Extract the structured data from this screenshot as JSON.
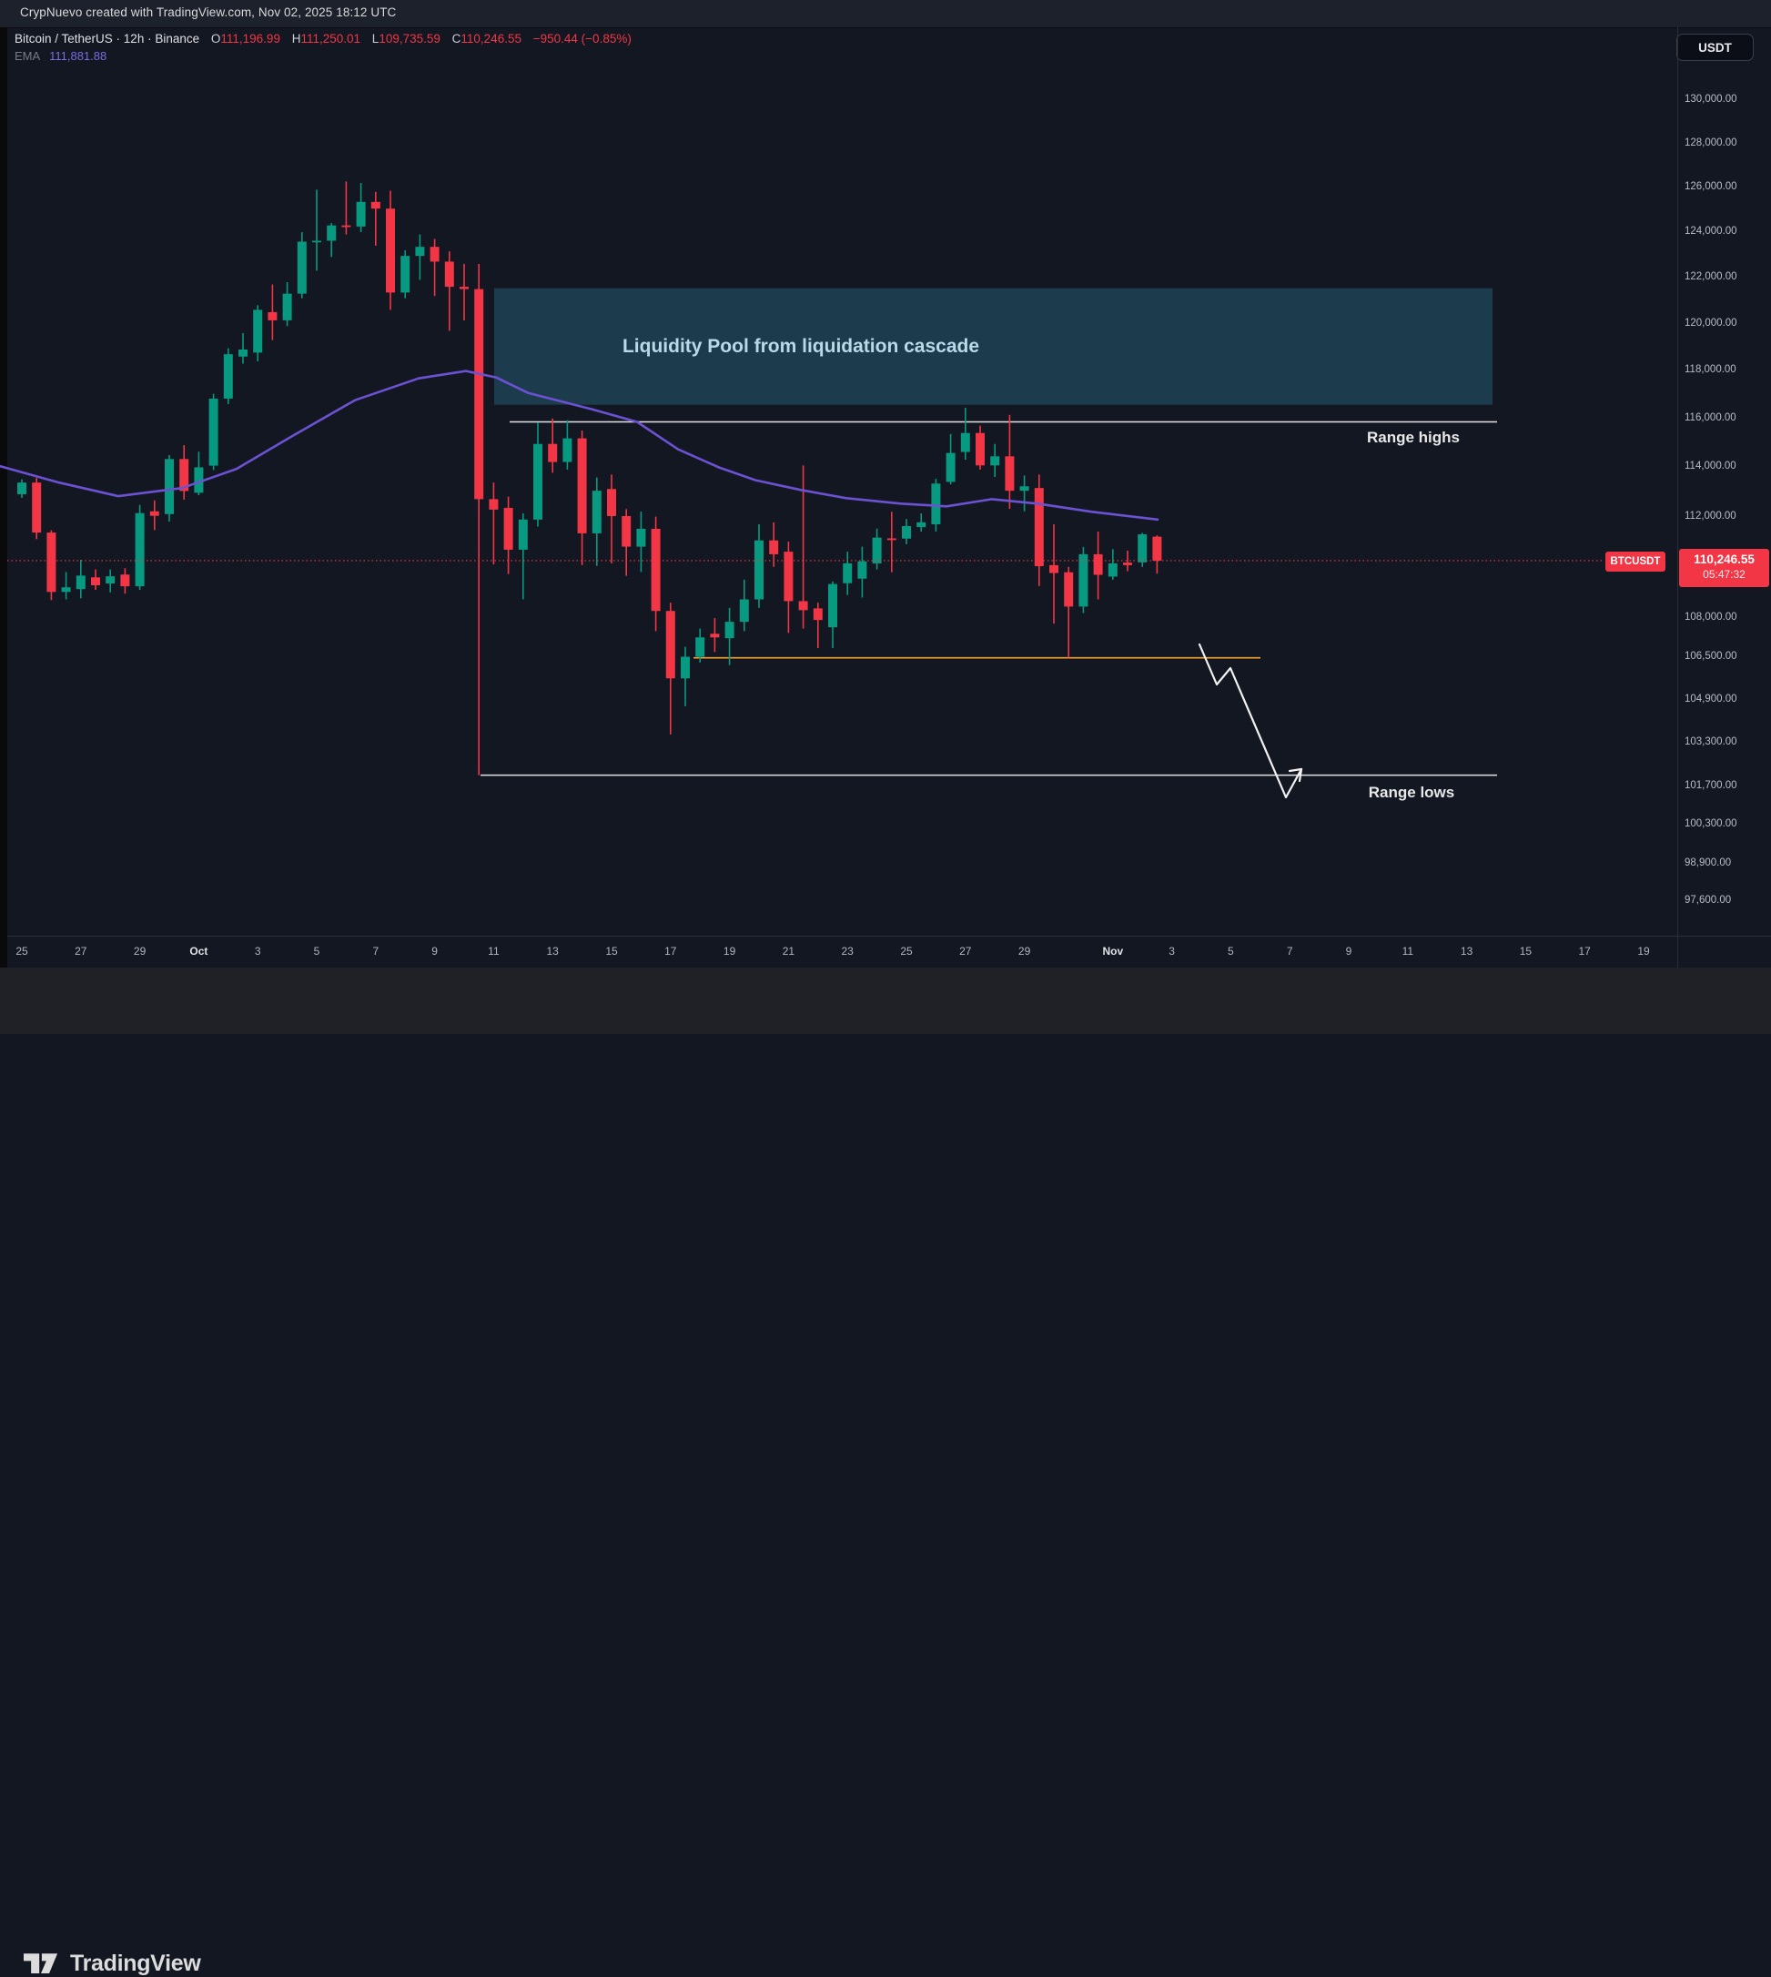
{
  "attribution": "CrypNuevo created with TradingView.com, Nov 02, 2025 18:12 UTC",
  "header": {
    "symbol_line": "Bitcoin / TetherUS · 12h · Binance",
    "o_label": "O",
    "o_value": "111,196.99",
    "h_label": "H",
    "h_value": "111,250.01",
    "l_label": "L",
    "l_value": "109,735.59",
    "c_label": "C",
    "c_value": "110,246.55",
    "change": "−950.44 (−0.85%)",
    "ema_label": "EMA",
    "ema_value": "111,881.88"
  },
  "currency_button": "USDT",
  "price_badge": {
    "symbol": "BTCUSDT",
    "price": "110,246.55",
    "countdown": "05:47:32"
  },
  "annotations": {
    "liquidity": "Liquidity Pool from liquidation cascade",
    "range_highs": "Range highs",
    "range_lows": "Range lows"
  },
  "logo": {
    "text": "TradingView"
  },
  "colors": {
    "background": "#131722",
    "bullish": "#089981",
    "bearish": "#f23645",
    "ema": "#6c52d2",
    "level_orange": "#f0a030",
    "range_line": "#e3e3e3",
    "liquidity_fill": "rgba(45,130,158,0.35)",
    "liquidity_text": "#b9d9e8"
  },
  "price_axis": {
    "ticks": [
      {
        "label": "130,000.00",
        "price": 130000
      },
      {
        "label": "128,000.00",
        "price": 128000
      },
      {
        "label": "126,000.00",
        "price": 126000
      },
      {
        "label": "124,000.00",
        "price": 124000
      },
      {
        "label": "122,000.00",
        "price": 122000
      },
      {
        "label": "120,000.00",
        "price": 120000
      },
      {
        "label": "118,000.00",
        "price": 118000
      },
      {
        "label": "116,000.00",
        "price": 116000
      },
      {
        "label": "114,000.00",
        "price": 114000
      },
      {
        "label": "112,000.00",
        "price": 112000
      },
      {
        "label": "108,000.00",
        "price": 108000
      },
      {
        "label": "106,500.00",
        "price": 106500
      },
      {
        "label": "104,900.00",
        "price": 104900
      },
      {
        "label": "103,300.00",
        "price": 103300
      },
      {
        "label": "101,700.00",
        "price": 101700
      },
      {
        "label": "100,300.00",
        "price": 100300
      },
      {
        "label": "98,900.00",
        "price": 98900
      },
      {
        "label": "97,600.00",
        "price": 97600
      }
    ]
  },
  "time_axis": {
    "ticks": [
      {
        "label": "25",
        "days": 0,
        "bold": false
      },
      {
        "label": "27",
        "days": 2,
        "bold": false
      },
      {
        "label": "29",
        "days": 4,
        "bold": false
      },
      {
        "label": "Oct",
        "days": 6,
        "bold": true
      },
      {
        "label": "3",
        "days": 8,
        "bold": false
      },
      {
        "label": "5",
        "days": 10,
        "bold": false
      },
      {
        "label": "7",
        "days": 12,
        "bold": false
      },
      {
        "label": "9",
        "days": 14,
        "bold": false
      },
      {
        "label": "11",
        "days": 16,
        "bold": false
      },
      {
        "label": "13",
        "days": 18,
        "bold": false
      },
      {
        "label": "15",
        "days": 20,
        "bold": false
      },
      {
        "label": "17",
        "days": 22,
        "bold": false
      },
      {
        "label": "19",
        "days": 24,
        "bold": false
      },
      {
        "label": "21",
        "days": 26,
        "bold": false
      },
      {
        "label": "23",
        "days": 28,
        "bold": false
      },
      {
        "label": "25",
        "days": 30,
        "bold": false
      },
      {
        "label": "27",
        "days": 32,
        "bold": false
      },
      {
        "label": "29",
        "days": 34,
        "bold": false
      },
      {
        "label": "Nov",
        "days": 37,
        "bold": true
      },
      {
        "label": "3",
        "days": 39,
        "bold": false
      },
      {
        "label": "5",
        "days": 41,
        "bold": false
      },
      {
        "label": "7",
        "days": 43,
        "bold": false
      },
      {
        "label": "9",
        "days": 45,
        "bold": false
      },
      {
        "label": "11",
        "days": 47,
        "bold": false
      },
      {
        "label": "13",
        "days": 49,
        "bold": false
      },
      {
        "label": "15",
        "days": 51,
        "bold": false
      },
      {
        "label": "17",
        "days": 53,
        "bold": false
      },
      {
        "label": "19",
        "days": 55,
        "bold": false
      }
    ]
  },
  "chart_data": {
    "type": "candlestick",
    "title": "Bitcoin / TetherUS · 12h · Binance",
    "timeframe": "12h",
    "last_price": 110246.55,
    "ylim": [
      97600,
      130000
    ],
    "scale": {
      "log": true,
      "p_top": 130000,
      "y_top": 110,
      "p_bottom": 97600,
      "y_bottom": 990
    },
    "levels": {
      "range_highs": 115860,
      "range_lows": 102100,
      "liquidity_support": 106480
    },
    "liquidity_zone": {
      "top": 121540,
      "bottom": 116570
    },
    "candles": [
      [
        112900,
        113500,
        112750,
        113370
      ],
      [
        113370,
        113560,
        111100,
        111360
      ],
      [
        111360,
        111450,
        108700,
        109020
      ],
      [
        109020,
        109800,
        108730,
        109200
      ],
      [
        109130,
        110280,
        108770,
        109660
      ],
      [
        109590,
        109900,
        109100,
        109280
      ],
      [
        109350,
        109900,
        109000,
        109630
      ],
      [
        109700,
        109950,
        108950,
        109240
      ],
      [
        109240,
        112470,
        109100,
        112140
      ],
      [
        112210,
        112650,
        111460,
        112030
      ],
      [
        112100,
        114490,
        111800,
        114330
      ],
      [
        114330,
        114900,
        112680,
        113030
      ],
      [
        112960,
        114630,
        112860,
        113990
      ],
      [
        114060,
        117030,
        113880,
        116830
      ],
      [
        116830,
        118950,
        116600,
        118700
      ],
      [
        118600,
        119600,
        118300,
        118900
      ],
      [
        118770,
        120800,
        118400,
        120600
      ],
      [
        120500,
        121700,
        119300,
        120150
      ],
      [
        120150,
        121800,
        119900,
        121300
      ],
      [
        121300,
        124000,
        121100,
        123580
      ],
      [
        123580,
        125900,
        122300,
        123620
      ],
      [
        123620,
        124400,
        122900,
        124300
      ],
      [
        124300,
        126270,
        123900,
        124250
      ],
      [
        124250,
        126200,
        124000,
        125350
      ],
      [
        125350,
        125800,
        123400,
        125050
      ],
      [
        125050,
        125850,
        120600,
        121350
      ],
      [
        121350,
        123200,
        121100,
        122950
      ],
      [
        122950,
        123900,
        121900,
        123350
      ],
      [
        123350,
        123700,
        121200,
        122700
      ],
      [
        122700,
        123150,
        119700,
        121600
      ],
      [
        121600,
        122600,
        120150,
        121500
      ],
      [
        121500,
        122600,
        102100,
        112700
      ],
      [
        112700,
        113370,
        110100,
        112280
      ],
      [
        112350,
        112800,
        109720,
        110680
      ],
      [
        110680,
        112130,
        108730,
        111880
      ],
      [
        111880,
        115830,
        111600,
        114950
      ],
      [
        114950,
        116000,
        113770,
        114210
      ],
      [
        114210,
        115930,
        113900,
        115180
      ],
      [
        115180,
        115500,
        110070,
        111330
      ],
      [
        111330,
        113580,
        110040,
        113040
      ],
      [
        113110,
        113700,
        110140,
        112020
      ],
      [
        112020,
        112300,
        109650,
        110800
      ],
      [
        110800,
        112200,
        109800,
        111510
      ],
      [
        111510,
        112000,
        107500,
        108280
      ],
      [
        108280,
        108600,
        103600,
        105700
      ],
      [
        105700,
        106900,
        104650,
        106520
      ],
      [
        106520,
        107600,
        106300,
        107260
      ],
      [
        107400,
        108000,
        106700,
        107260
      ],
      [
        107230,
        108400,
        106200,
        107860
      ],
      [
        107860,
        109500,
        107500,
        108730
      ],
      [
        108730,
        111690,
        108400,
        111050
      ],
      [
        111050,
        111770,
        110000,
        110500
      ],
      [
        110600,
        111000,
        107430,
        108660
      ],
      [
        108660,
        114070,
        107600,
        108310
      ],
      [
        108380,
        108600,
        106850,
        107930
      ],
      [
        107650,
        109430,
        106850,
        109330
      ],
      [
        109360,
        110600,
        108900,
        110140
      ],
      [
        109540,
        110800,
        108800,
        110220
      ],
      [
        110140,
        111520,
        109900,
        111160
      ],
      [
        111130,
        112190,
        109790,
        111060
      ],
      [
        111120,
        111900,
        110900,
        111620
      ],
      [
        111580,
        112130,
        111400,
        111770
      ],
      [
        111690,
        113520,
        111400,
        113330
      ],
      [
        113400,
        115360,
        113300,
        114580
      ],
      [
        114620,
        116450,
        114300,
        115400
      ],
      [
        115400,
        115700,
        113900,
        114070
      ],
      [
        114070,
        114950,
        113600,
        114440
      ],
      [
        114440,
        116150,
        112310,
        113040
      ],
      [
        113040,
        113660,
        112210,
        113220
      ],
      [
        113150,
        113700,
        109250,
        110030
      ],
      [
        110070,
        111690,
        107790,
        109760
      ],
      [
        109790,
        110000,
        106480,
        108450
      ],
      [
        108450,
        110790,
        108200,
        110500
      ],
      [
        110500,
        111400,
        108730,
        109690
      ],
      [
        109620,
        110700,
        109500,
        110140
      ],
      [
        110170,
        110640,
        109830,
        110070
      ],
      [
        110180,
        111350,
        110000,
        111290
      ],
      [
        111196.99,
        111250.01,
        109735.59,
        110246.55
      ]
    ],
    "ema_points": [
      [
        0,
        114040
      ],
      [
        65,
        113370
      ],
      [
        130,
        112820
      ],
      [
        200,
        113150
      ],
      [
        260,
        113930
      ],
      [
        320,
        115250
      ],
      [
        390,
        116760
      ],
      [
        460,
        117680
      ],
      [
        512,
        117990
      ],
      [
        545,
        117720
      ],
      [
        580,
        117070
      ],
      [
        650,
        116390
      ],
      [
        700,
        115860
      ],
      [
        745,
        114730
      ],
      [
        790,
        113990
      ],
      [
        830,
        113470
      ],
      [
        880,
        113070
      ],
      [
        930,
        112740
      ],
      [
        990,
        112520
      ],
      [
        1040,
        112410
      ],
      [
        1090,
        112700
      ],
      [
        1140,
        112520
      ],
      [
        1200,
        112190
      ],
      [
        1272,
        111882
      ]
    ]
  }
}
